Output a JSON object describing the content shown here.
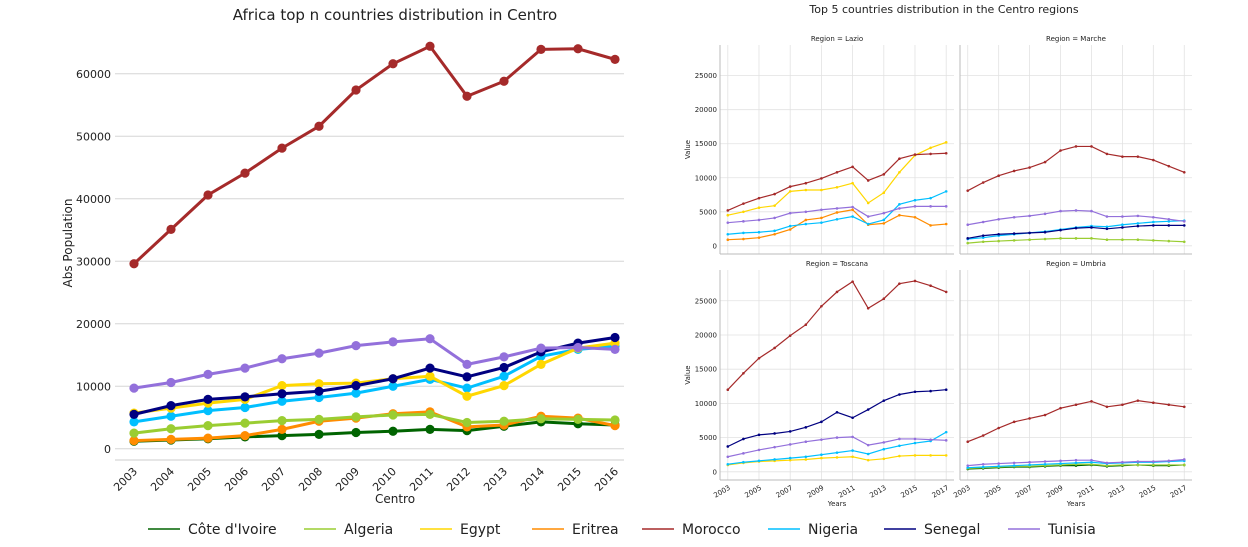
{
  "colors": {
    "Côte d'Ivoire": "#006400",
    "Algeria": "#9acd32",
    "Egypt": "#ffd700",
    "Eritrea": "#ff8c00",
    "Morocco": "#a52a2a",
    "Nigeria": "#00bfff",
    "Senegal": "#000080",
    "Tunisia": "#9370db"
  },
  "legend": {
    "placement": "bottom",
    "entries": [
      "Côte d'Ivoire",
      "Algeria",
      "Egypt",
      "Eritrea",
      "Morocco",
      "Nigeria",
      "Senegal",
      "Tunisia"
    ]
  },
  "chart_data": [
    {
      "type": "line",
      "title": "Africa top n countries distribution in Centro",
      "xlabel": "Centro",
      "ylabel": "Abs Population",
      "x": [
        2003,
        2004,
        2005,
        2006,
        2007,
        2008,
        2009,
        2010,
        2011,
        2012,
        2013,
        2014,
        2015,
        2016
      ],
      "xlim": [
        2003,
        2016
      ],
      "ylim": [
        -1800,
        67000
      ],
      "yticks": [
        0,
        10000,
        20000,
        30000,
        40000,
        50000,
        60000
      ],
      "grid": "horizontal",
      "series": [
        {
          "name": "Morocco",
          "values": [
            29600,
            35100,
            40600,
            44100,
            48100,
            51600,
            57400,
            61600,
            64400,
            56400,
            58800,
            63900,
            64000,
            62300
          ]
        },
        {
          "name": "Tunisia",
          "values": [
            9700,
            10600,
            11900,
            12900,
            14400,
            15300,
            16500,
            17100,
            17600,
            13500,
            14700,
            16100,
            16200,
            15900
          ]
        },
        {
          "name": "Senegal",
          "values": [
            5500,
            6900,
            7900,
            8300,
            8800,
            9200,
            10100,
            11200,
            12900,
            11500,
            13000,
            15500,
            16900,
            17800
          ]
        },
        {
          "name": "Egypt",
          "values": [
            5700,
            6500,
            7300,
            7900,
            10100,
            10400,
            10500,
            11200,
            11600,
            8400,
            10100,
            13500,
            16100,
            16900
          ]
        },
        {
          "name": "Nigeria",
          "values": [
            4300,
            5200,
            6100,
            6600,
            7600,
            8200,
            8900,
            10000,
            11100,
            9700,
            11600,
            14800,
            15900,
            16400
          ]
        },
        {
          "name": "Algeria",
          "values": [
            2500,
            3200,
            3700,
            4100,
            4500,
            4700,
            5100,
            5400,
            5500,
            4200,
            4400,
            4800,
            4700,
            4600
          ]
        },
        {
          "name": "Eritrea",
          "values": [
            1300,
            1500,
            1700,
            2100,
            3100,
            4400,
            4900,
            5600,
            5900,
            3500,
            3800,
            5200,
            4900,
            3700
          ]
        },
        {
          "name": "Côte d'Ivoire",
          "values": [
            1200,
            1400,
            1600,
            1900,
            2100,
            2300,
            2600,
            2800,
            3100,
            2900,
            3600,
            4300,
            4000,
            3800
          ]
        }
      ]
    },
    {
      "type": "line",
      "title": "Top 5 countries distribution in the Centro regions",
      "xlabel": "Years",
      "ylabel": "Value",
      "x": [
        2003,
        2004,
        2005,
        2006,
        2007,
        2008,
        2009,
        2010,
        2011,
        2012,
        2013,
        2014,
        2015,
        2016,
        2017
      ],
      "xticks": [
        2003,
        2005,
        2007,
        2009,
        2011,
        2013,
        2015,
        2017
      ],
      "xlim": [
        2002.5,
        2017.5
      ],
      "ylim": [
        -1200,
        29500
      ],
      "yticks": [
        0,
        5000,
        10000,
        15000,
        20000,
        25000
      ],
      "grid": "both",
      "facets": [
        {
          "title": "Region = Lazio",
          "series": [
            {
              "name": "Morocco",
              "values": [
                5200,
                6200,
                7000,
                7600,
                8700,
                9200,
                9900,
                10800,
                11600,
                9600,
                10500,
                12800,
                13400,
                13500,
                13600
              ]
            },
            {
              "name": "Egypt",
              "values": [
                4500,
                5000,
                5600,
                5900,
                8000,
                8200,
                8200,
                8600,
                9200,
                6300,
                7800,
                10800,
                13300,
                14400,
                15200
              ]
            },
            {
              "name": "Tunisia",
              "values": [
                3400,
                3600,
                3800,
                4100,
                4800,
                5000,
                5300,
                5500,
                5700,
                4300,
                4800,
                5500,
                5800,
                5800,
                5800
              ]
            },
            {
              "name": "Nigeria",
              "values": [
                1700,
                1900,
                2000,
                2200,
                2900,
                3200,
                3400,
                3900,
                4300,
                3200,
                3800,
                6100,
                6700,
                7000,
                8000
              ]
            },
            {
              "name": "Eritrea",
              "values": [
                900,
                1000,
                1200,
                1700,
                2400,
                3800,
                4100,
                4900,
                5300,
                3100,
                3300,
                4500,
                4200,
                3000,
                3200
              ]
            }
          ]
        },
        {
          "title": "Region = Marche",
          "series": [
            {
              "name": "Morocco",
              "values": [
                8100,
                9300,
                10300,
                11000,
                11500,
                12300,
                14000,
                14600,
                14600,
                13500,
                13100,
                13100,
                12600,
                11700,
                10800
              ]
            },
            {
              "name": "Tunisia",
              "values": [
                3100,
                3500,
                3900,
                4200,
                4400,
                4700,
                5100,
                5200,
                5100,
                4300,
                4300,
                4400,
                4200,
                3900,
                3600
              ]
            },
            {
              "name": "Senegal",
              "values": [
                1100,
                1500,
                1700,
                1800,
                1900,
                2000,
                2300,
                2600,
                2700,
                2500,
                2700,
                2900,
                3000,
                3000,
                3000
              ]
            },
            {
              "name": "Nigeria",
              "values": [
                1000,
                1200,
                1500,
                1700,
                1900,
                2100,
                2400,
                2700,
                2900,
                2800,
                3100,
                3300,
                3500,
                3600,
                3700
              ]
            },
            {
              "name": "Algeria",
              "values": [
                400,
                600,
                700,
                800,
                900,
                1000,
                1100,
                1100,
                1100,
                900,
                900,
                900,
                800,
                700,
                600
              ]
            }
          ]
        },
        {
          "title": "Region = Toscana",
          "series": [
            {
              "name": "Morocco",
              "values": [
                12000,
                14400,
                16600,
                18100,
                19900,
                21500,
                24200,
                26300,
                27800,
                23900,
                25300,
                27500,
                27900,
                27200,
                26300
              ]
            },
            {
              "name": "Senegal",
              "values": [
                3700,
                4800,
                5400,
                5600,
                5900,
                6500,
                7300,
                8700,
                7900,
                9100,
                10400,
                11300,
                11700,
                11800,
                12000
              ]
            },
            {
              "name": "Tunisia",
              "values": [
                2200,
                2700,
                3200,
                3600,
                4000,
                4400,
                4700,
                5000,
                5100,
                3900,
                4300,
                4800,
                4800,
                4700,
                4600
              ]
            },
            {
              "name": "Nigeria",
              "values": [
                1100,
                1400,
                1600,
                1800,
                2000,
                2200,
                2500,
                2800,
                3100,
                2600,
                3300,
                3800,
                4200,
                4500,
                5800
              ]
            },
            {
              "name": "Egypt",
              "values": [
                1000,
                1300,
                1500,
                1600,
                1700,
                1800,
                2000,
                2100,
                2200,
                1700,
                1900,
                2300,
                2400,
                2400,
                2400
              ]
            }
          ]
        },
        {
          "title": "Region = Umbria",
          "series": [
            {
              "name": "Morocco",
              "values": [
                4400,
                5300,
                6400,
                7300,
                7800,
                8300,
                9300,
                9800,
                10300,
                9500,
                9800,
                10400,
                10100,
                9800,
                9500
              ]
            },
            {
              "name": "Tunisia",
              "values": [
                900,
                1100,
                1200,
                1300,
                1400,
                1500,
                1600,
                1700,
                1700,
                1300,
                1400,
                1500,
                1500,
                1600,
                1800
              ]
            },
            {
              "name": "Nigeria",
              "values": [
                600,
                700,
                800,
                900,
                1000,
                1100,
                1200,
                1300,
                1400,
                1200,
                1300,
                1400,
                1400,
                1500,
                1600
              ]
            },
            {
              "name": "Algeria",
              "values": [
                500,
                600,
                700,
                800,
                800,
                900,
                1000,
                1100,
                1100,
                900,
                1000,
                1000,
                1000,
                1000,
                1000
              ]
            },
            {
              "name": "Côte d'Ivoire",
              "values": [
                400,
                500,
                600,
                700,
                700,
                800,
                900,
                900,
                1000,
                800,
                900,
                1000,
                900,
                900,
                1000
              ]
            }
          ]
        }
      ]
    }
  ]
}
